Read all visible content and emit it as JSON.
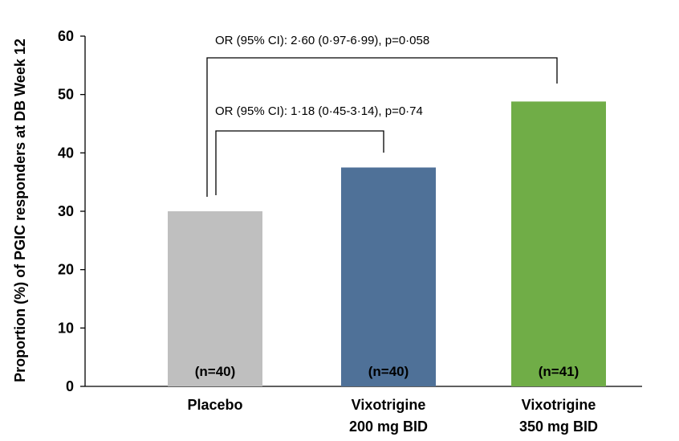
{
  "chart_data": {
    "type": "bar",
    "title": "",
    "xlabel": "",
    "ylabel": "Proportion (%) of PGIC responders at DB Week 12",
    "ylim": [
      0,
      60
    ],
    "yticks": [
      0,
      10,
      20,
      30,
      40,
      50,
      60
    ],
    "grid": false,
    "categories": [
      {
        "line1": "Placebo",
        "line2": ""
      },
      {
        "line1": "Vixotrigine",
        "line2": "200 mg BID"
      },
      {
        "line1": "Vixotrigine",
        "line2": "350 mg BID"
      }
    ],
    "values": [
      30.0,
      37.5,
      48.8
    ],
    "sample_sizes": [
      "(n=40)",
      "(n=40)",
      "(n=41)"
    ],
    "colors": [
      "#bfbfbf",
      "#4f7198",
      "#70ad47"
    ],
    "annotations": [
      {
        "text": "OR (95% CI): 2·60 (0·97-6·99), p=0·058",
        "from": 0,
        "to": 2
      },
      {
        "text": "OR (95% CI): 1·18 (0·45-3·14), p=0·74",
        "from": 0,
        "to": 1
      }
    ]
  }
}
